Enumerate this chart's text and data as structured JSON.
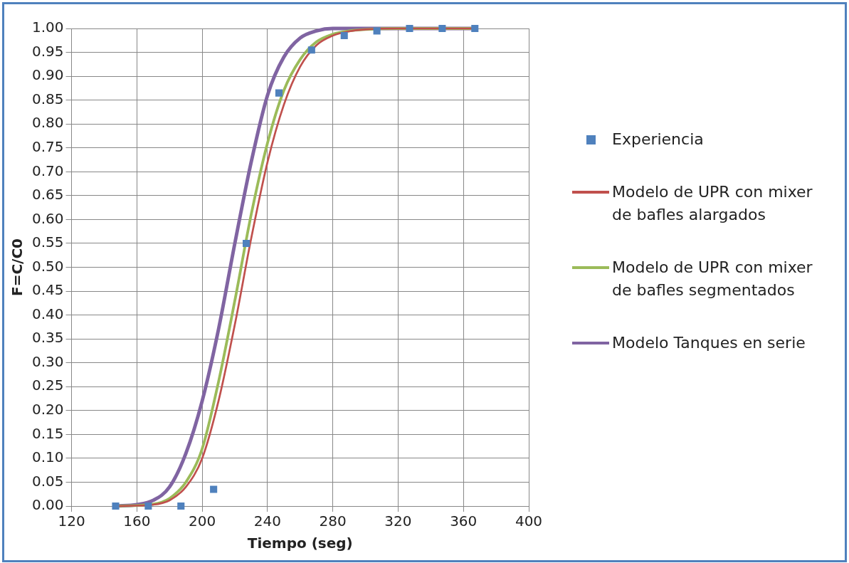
{
  "chart_data": {
    "type": "line",
    "xlabel": "Tiempo (seg)",
    "ylabel": "F=C/C0",
    "xlim": [
      120,
      400
    ],
    "xticks": [
      120,
      160,
      200,
      240,
      280,
      320,
      360,
      400
    ],
    "ylim": [
      0,
      1
    ],
    "yticks": [
      {
        "value": 0,
        "label": "0.00"
      },
      {
        "value": 0.05,
        "label": "0.05"
      },
      {
        "value": 0.1,
        "label": "0.10"
      },
      {
        "value": 0.15,
        "label": "0.15"
      },
      {
        "value": 0.2,
        "label": "0.20"
      },
      {
        "value": 0.25,
        "label": "0.25"
      },
      {
        "value": 0.3,
        "label": "0.30"
      },
      {
        "value": 0.35,
        "label": "0.35"
      },
      {
        "value": 0.4,
        "label": "0.40"
      },
      {
        "value": 0.45,
        "label": "0.45"
      },
      {
        "value": 0.5,
        "label": "0.50"
      },
      {
        "value": 0.55,
        "label": "0.55"
      },
      {
        "value": 0.6,
        "label": "0.60"
      },
      {
        "value": 0.65,
        "label": "0.65"
      },
      {
        "value": 0.7,
        "label": "0.70"
      },
      {
        "value": 0.75,
        "label": "0.75"
      },
      {
        "value": 0.8,
        "label": "0.80"
      },
      {
        "value": 0.85,
        "label": "0.85"
      },
      {
        "value": 0.9,
        "label": "0.90"
      },
      {
        "value": 0.95,
        "label": "0.95"
      },
      {
        "value": 1,
        "label": "1.00"
      }
    ],
    "grid": true,
    "legend": "right",
    "line_style": "solid",
    "series": [
      {
        "name": "Experiencia",
        "type": "scatter",
        "marker": "square",
        "color": "#4f81bd",
        "x": [
          147,
          167,
          187,
          207,
          227,
          247,
          267,
          287,
          307,
          327,
          347,
          367
        ],
        "values": [
          0,
          0,
          0,
          0.035,
          0.55,
          0.865,
          0.955,
          0.985,
          0.995,
          1,
          1,
          1
        ]
      },
      {
        "name": "Modelo de UPR con mixer de bafles alargados",
        "type": "line",
        "marker": "none",
        "color": "#c0504d",
        "x": [
          147,
          170,
          180,
          190,
          200,
          210,
          220,
          230,
          240,
          250,
          260,
          270,
          280,
          290,
          300,
          320,
          367
        ],
        "values": [
          0,
          0.003,
          0.012,
          0.04,
          0.1,
          0.22,
          0.38,
          0.56,
          0.72,
          0.84,
          0.92,
          0.965,
          0.985,
          0.994,
          0.998,
          1,
          1
        ]
      },
      {
        "name": "Modelo de UPR con mixer de bafles segmentados",
        "type": "line",
        "marker": "none",
        "color": "#9bbb59",
        "x": [
          147,
          170,
          180,
          190,
          200,
          210,
          220,
          230,
          240,
          250,
          260,
          270,
          280,
          290,
          300,
          320,
          367
        ],
        "values": [
          0,
          0.004,
          0.016,
          0.05,
          0.12,
          0.26,
          0.43,
          0.61,
          0.76,
          0.87,
          0.935,
          0.972,
          0.988,
          0.995,
          0.998,
          1,
          1
        ]
      },
      {
        "name": "Modelo Tanques en serie",
        "type": "line",
        "marker": "none",
        "color": "#8064a2",
        "x": [
          147,
          160,
          170,
          180,
          190,
          200,
          210,
          220,
          230,
          240,
          250,
          260,
          270,
          280,
          367
        ],
        "values": [
          0,
          0.003,
          0.012,
          0.04,
          0.11,
          0.22,
          0.37,
          0.55,
          0.72,
          0.86,
          0.94,
          0.98,
          0.995,
          1,
          1
        ]
      }
    ]
  }
}
